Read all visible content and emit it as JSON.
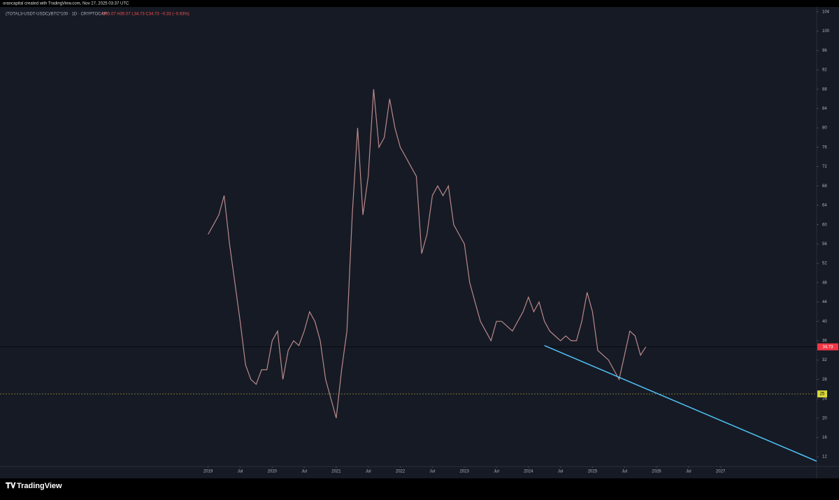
{
  "attribution": "orancapital created with TradingView.com, Nov 27, 2025 03:37 UTC",
  "brand": "TradingView",
  "chart_data": {
    "type": "line",
    "title": "(TOTAL3-USDT-USDC)/BTC*100 · 1D · CRYPTOCAP",
    "ohlc_text": "O35.07 H35.07 L34.73 C34.73 −0.33 (−0.93%)",
    "x": [
      "2019-01",
      "2019-02",
      "2019-03",
      "2019-04",
      "2019-05",
      "2019-06",
      "2019-07",
      "2019-08",
      "2019-09",
      "2019-10",
      "2019-11",
      "2019-12",
      "2020-01",
      "2020-02",
      "2020-03",
      "2020-04",
      "2020-05",
      "2020-06",
      "2020-07",
      "2020-08",
      "2020-09",
      "2020-10",
      "2020-11",
      "2020-12",
      "2021-01",
      "2021-02",
      "2021-03",
      "2021-04",
      "2021-05",
      "2021-06",
      "2021-07",
      "2021-08",
      "2021-09",
      "2021-10",
      "2021-11",
      "2021-12",
      "2022-01",
      "2022-02",
      "2022-03",
      "2022-04",
      "2022-05",
      "2022-06",
      "2022-07",
      "2022-08",
      "2022-09",
      "2022-10",
      "2022-11",
      "2022-12",
      "2023-01",
      "2023-02",
      "2023-03",
      "2023-04",
      "2023-05",
      "2023-06",
      "2023-07",
      "2023-08",
      "2023-09",
      "2023-10",
      "2023-11",
      "2023-12",
      "2024-01",
      "2024-02",
      "2024-03",
      "2024-04",
      "2024-05",
      "2024-06",
      "2024-07",
      "2024-08",
      "2024-09",
      "2024-10",
      "2024-11",
      "2024-12",
      "2025-01",
      "2025-02",
      "2025-03",
      "2025-04",
      "2025-05",
      "2025-06",
      "2025-07",
      "2025-08",
      "2025-09",
      "2025-10",
      "2025-11"
    ],
    "series": [
      {
        "name": "(TOTAL3-USDT-USDC)/BTC*100",
        "color": "#b98a8a",
        "values": [
          58,
          60,
          62,
          66,
          56,
          48,
          40,
          31,
          28,
          27,
          30,
          30,
          36,
          38,
          28,
          34,
          36,
          35,
          38,
          42,
          40,
          36,
          28,
          24,
          20,
          30,
          38,
          62,
          80,
          62,
          70,
          88,
          76,
          78,
          86,
          80,
          76,
          74,
          72,
          70,
          54,
          58,
          66,
          68,
          66,
          68,
          60,
          58,
          56,
          48,
          44,
          40,
          38,
          36,
          40,
          40,
          39,
          38,
          40,
          42,
          45,
          42,
          44,
          40,
          38,
          37,
          36,
          37,
          36,
          36,
          40,
          46,
          42,
          34,
          33,
          32,
          30,
          28,
          33,
          38,
          37,
          33,
          34.73
        ]
      }
    ],
    "last_price": 34.73,
    "hline": {
      "value": 25,
      "color": "#d9d93a"
    },
    "trendline": {
      "x": [
        "2024-04",
        "2028-07"
      ],
      "y": [
        35,
        11.1
      ],
      "color": "#4fc3f7"
    },
    "xlim": [
      "2015-10",
      "2028-07"
    ],
    "ylim": [
      10,
      105
    ],
    "xticks": [
      {
        "value": "2019-01",
        "label": "2019"
      },
      {
        "value": "2019-07",
        "label": "Jul"
      },
      {
        "value": "2020-01",
        "label": "2020"
      },
      {
        "value": "2020-07",
        "label": "Jul"
      },
      {
        "value": "2021-01",
        "label": "2021"
      },
      {
        "value": "2021-07",
        "label": "Jul"
      },
      {
        "value": "2022-01",
        "label": "2022"
      },
      {
        "value": "2022-07",
        "label": "Jul"
      },
      {
        "value": "2023-01",
        "label": "2023"
      },
      {
        "value": "2023-07",
        "label": "Jul"
      },
      {
        "value": "2024-01",
        "label": "2024"
      },
      {
        "value": "2024-07",
        "label": "Jul"
      },
      {
        "value": "2025-01",
        "label": "2025"
      },
      {
        "value": "2025-07",
        "label": "Jul"
      },
      {
        "value": "2026-01",
        "label": "2026"
      },
      {
        "value": "2026-07",
        "label": "Jul"
      },
      {
        "value": "2027-01",
        "label": "2027"
      }
    ],
    "yticks": [
      104,
      100,
      96,
      92,
      88,
      84,
      80,
      76,
      72,
      68,
      64,
      60,
      56,
      52,
      48,
      44,
      40,
      36,
      32,
      28,
      24,
      20,
      16,
      12
    ],
    "grid": false
  }
}
